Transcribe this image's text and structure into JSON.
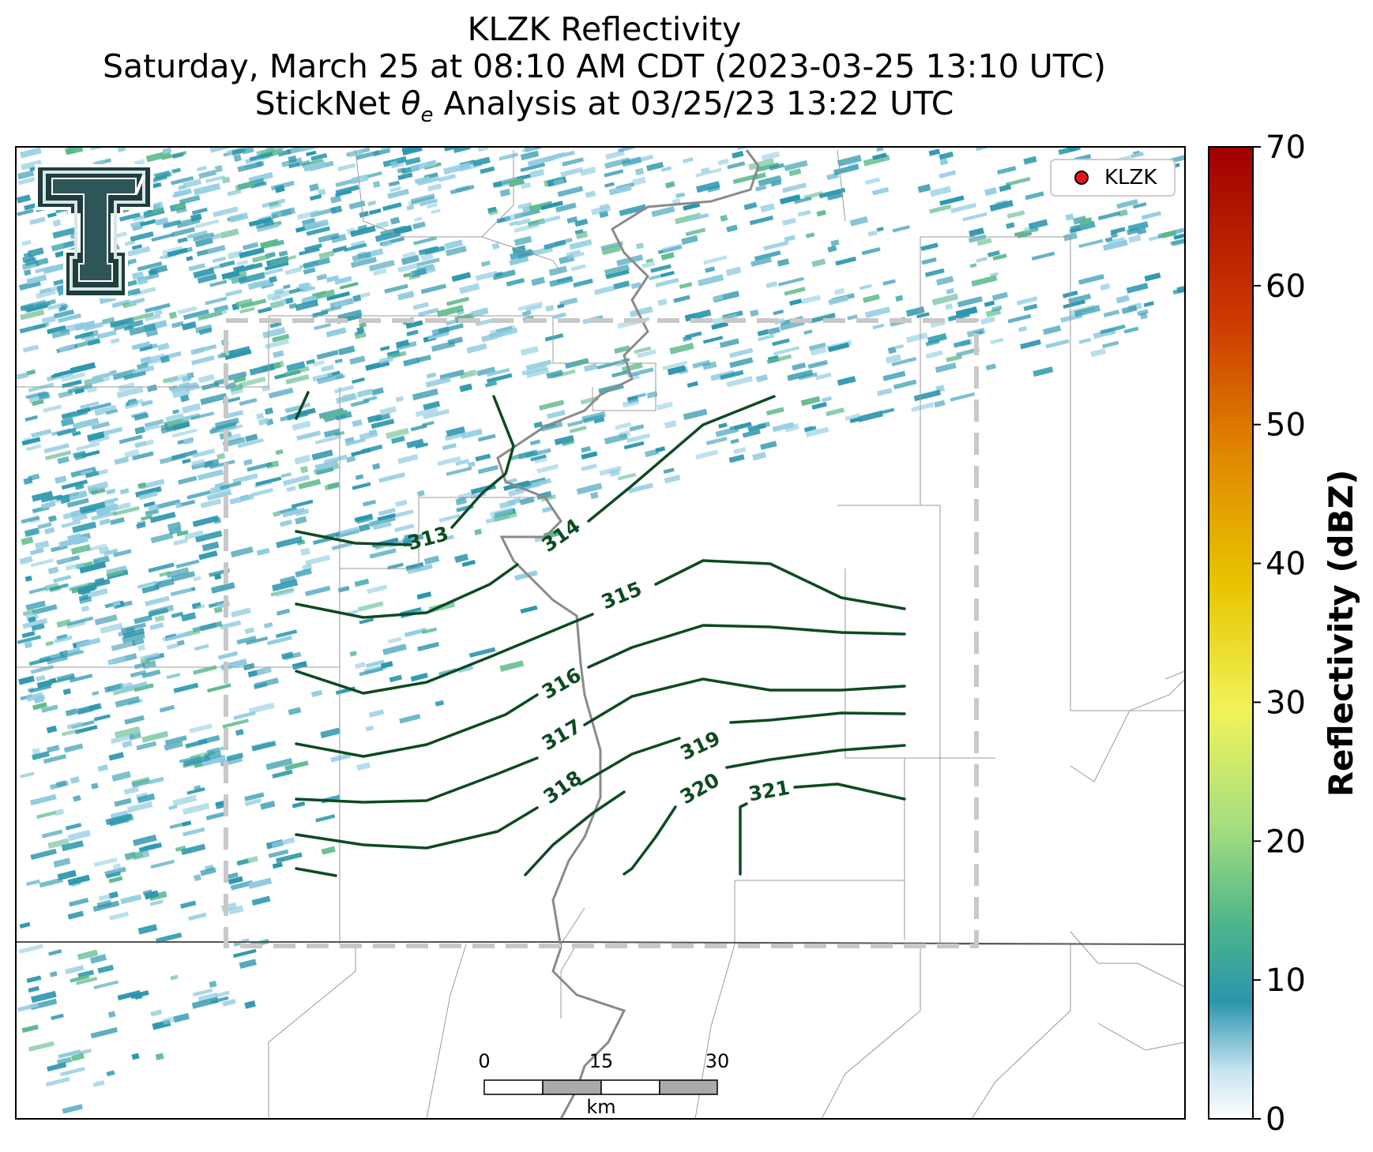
{
  "title": {
    "line1": "KLZK Reflectivity",
    "line2": "Saturday, March 25 at 08:10 AM CDT (2023-03-25 13:10 UTC)",
    "line3_prefix": "StickNet ",
    "line3_symbol": "θ",
    "line3_subscript": "e",
    "line3_suffix": " Analysis at 03/25/23 13:22 UTC"
  },
  "legend": {
    "station_label": "KLZK",
    "marker_color": "#e8141a"
  },
  "colorbar": {
    "label": "Reflectivity (dBZ)",
    "min": 0,
    "max": 70,
    "ticks": [
      "0",
      "10",
      "20",
      "30",
      "40",
      "50",
      "60",
      "70"
    ]
  },
  "scalebar": {
    "ticks": [
      "0",
      "15",
      "30"
    ],
    "unit": "km"
  },
  "contours": {
    "color": "#0d4a22",
    "labels": [
      "313",
      "314",
      "315",
      "316",
      "317",
      "318",
      "319",
      "320",
      "321"
    ]
  },
  "colors": {
    "reflectivity_low": "#8fcbe0",
    "reflectivity_mid": "#2b96ad",
    "reflectivity_high": "#5bb88a",
    "boundary_dashed": "#c8c8c8",
    "river": "#8a8a8a",
    "county_lines": "#9a9a9a"
  },
  "logo": {
    "name": "Texas Tech double-T",
    "color": "#1f3d3d"
  }
}
